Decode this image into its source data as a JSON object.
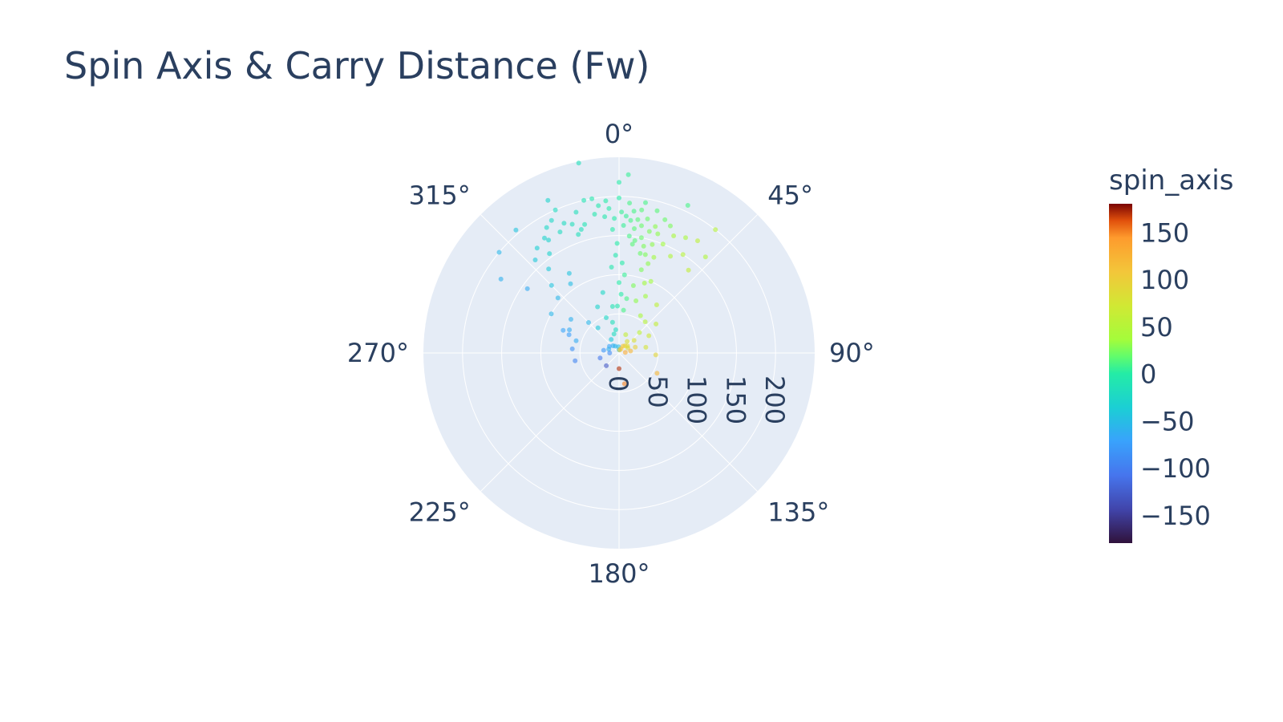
{
  "chart_data": {
    "type": "scatter",
    "subtype": "polar",
    "title": "Spin Axis & Carry Distance (Fw)",
    "angular_axis": {
      "direction": "clockwise",
      "rotation_zero": "top",
      "unit": "°",
      "ticks": [
        0,
        45,
        90,
        135,
        180,
        225,
        270,
        315
      ],
      "tick_labels": [
        "0°",
        "45°",
        "90°",
        "135°",
        "180°",
        "225°",
        "270°",
        "315°"
      ]
    },
    "radial_axis": {
      "range": [
        0,
        250
      ],
      "ticks": [
        0,
        50,
        100,
        150,
        200
      ],
      "tick_labels": [
        "0",
        "50",
        "100",
        "150",
        "200"
      ],
      "tick_angle": 90
    },
    "colorbar": {
      "title": "spin_axis",
      "range": [
        -180,
        180
      ],
      "ticks": [
        150,
        100,
        50,
        0,
        -50,
        -100,
        -150
      ],
      "tick_labels": [
        "150",
        "100",
        "50",
        "0",
        "−50",
        "−100",
        "−150"
      ],
      "colorscale": "Turbo"
    },
    "marker_opacity": 0.6,
    "points": [
      {
        "theta": 0,
        "r": 4,
        "spin_axis": -45
      },
      {
        "theta": 355,
        "r": 8,
        "spin_axis": -50
      },
      {
        "theta": 12,
        "r": 4,
        "spin_axis": 110
      },
      {
        "theta": 25,
        "r": 6,
        "spin_axis": 110
      },
      {
        "theta": 30,
        "r": 10,
        "spin_axis": 110
      },
      {
        "theta": 40,
        "r": 12,
        "spin_axis": 95
      },
      {
        "theta": 50,
        "r": 14,
        "spin_axis": 90
      },
      {
        "theta": 60,
        "r": 13,
        "spin_axis": 85
      },
      {
        "theta": 35,
        "r": 18,
        "spin_axis": 80
      },
      {
        "theta": 330,
        "r": 10,
        "spin_axis": -55
      },
      {
        "theta": 320,
        "r": 12,
        "spin_axis": -60
      },
      {
        "theta": 305,
        "r": 15,
        "spin_axis": -70
      },
      {
        "theta": 290,
        "r": 14,
        "spin_axis": -60
      },
      {
        "theta": 280,
        "r": 20,
        "spin_axis": -80
      },
      {
        "theta": 270,
        "r": 12,
        "spin_axis": -90
      },
      {
        "theta": 255,
        "r": 25,
        "spin_axis": -105
      },
      {
        "theta": 225,
        "r": 23,
        "spin_axis": -130
      },
      {
        "theta": 180,
        "r": 20,
        "spin_axis": 170
      },
      {
        "theta": 170,
        "r": 40,
        "spin_axis": 150
      },
      {
        "theta": 118,
        "r": 55,
        "spin_axis": 120
      },
      {
        "theta": 93,
        "r": 47,
        "spin_axis": 90
      },
      {
        "theta": 78,
        "r": 35,
        "spin_axis": 75
      },
      {
        "theta": 60,
        "r": 44,
        "spin_axis": 70
      },
      {
        "theta": 52,
        "r": 60,
        "spin_axis": 60
      },
      {
        "theta": 45,
        "r": 37,
        "spin_axis": 55
      },
      {
        "theta": 40,
        "r": 52,
        "spin_axis": 50
      },
      {
        "theta": 38,
        "r": 78,
        "spin_axis": 55
      },
      {
        "theta": 30,
        "r": 55,
        "spin_axis": 40
      },
      {
        "theta": 25,
        "r": 80,
        "spin_axis": 35
      },
      {
        "theta": 20,
        "r": 95,
        "spin_axis": 35
      },
      {
        "theta": 18,
        "r": 70,
        "spin_axis": 30
      },
      {
        "theta": 12,
        "r": 88,
        "spin_axis": 25
      },
      {
        "theta": 8,
        "r": 70,
        "spin_axis": 10
      },
      {
        "theta": 4,
        "r": 100,
        "spin_axis": 5
      },
      {
        "theta": 2,
        "r": 75,
        "spin_axis": 0
      },
      {
        "theta": 0,
        "r": 90,
        "spin_axis": 0
      },
      {
        "theta": 358,
        "r": 60,
        "spin_axis": -5
      },
      {
        "theta": 355,
        "r": 110,
        "spin_axis": -5
      },
      {
        "theta": 352,
        "r": 60,
        "spin_axis": -10
      },
      {
        "theta": 348,
        "r": 40,
        "spin_axis": -15
      },
      {
        "theta": 345,
        "r": 25,
        "spin_axis": -20
      },
      {
        "theta": 340,
        "r": 48,
        "spin_axis": -25
      },
      {
        "theta": 335,
        "r": 65,
        "spin_axis": -30
      },
      {
        "theta": 320,
        "r": 42,
        "spin_axis": -40
      },
      {
        "theta": 315,
        "r": 55,
        "spin_axis": -55
      },
      {
        "theta": 305,
        "r": 75,
        "spin_axis": -60
      },
      {
        "theta": 300,
        "r": 100,
        "spin_axis": -55
      },
      {
        "theta": 295,
        "r": 70,
        "spin_axis": -65
      },
      {
        "theta": 292,
        "r": 77,
        "spin_axis": -70
      },
      {
        "theta": 290,
        "r": 68,
        "spin_axis": -75
      },
      {
        "theta": 286,
        "r": 57,
        "spin_axis": -65
      },
      {
        "theta": 275,
        "r": 60,
        "spin_axis": -85
      },
      {
        "theta": 260,
        "r": 57,
        "spin_axis": -95
      },
      {
        "theta": 328,
        "r": 120,
        "spin_axis": -45
      },
      {
        "theta": 325,
        "r": 108,
        "spin_axis": -50
      },
      {
        "theta": 312,
        "r": 105,
        "spin_axis": -55
      },
      {
        "theta": 305,
        "r": 143,
        "spin_axis": -65
      },
      {
        "theta": 315,
        "r": 122,
        "spin_axis": -45
      },
      {
        "theta": 320,
        "r": 140,
        "spin_axis": -40
      },
      {
        "theta": 318,
        "r": 160,
        "spin_axis": -40
      },
      {
        "theta": 322,
        "r": 170,
        "spin_axis": -35
      },
      {
        "theta": 325,
        "r": 155,
        "spin_axis": -30
      },
      {
        "theta": 328,
        "r": 170,
        "spin_axis": -30
      },
      {
        "theta": 330,
        "r": 185,
        "spin_axis": -25
      },
      {
        "theta": 334,
        "r": 172,
        "spin_axis": -20
      },
      {
        "theta": 337,
        "r": 180,
        "spin_axis": -20
      },
      {
        "theta": 340,
        "r": 175,
        "spin_axis": -15
      },
      {
        "theta": 343,
        "r": 188,
        "spin_axis": -15
      },
      {
        "theta": 345,
        "r": 170,
        "spin_axis": -10
      },
      {
        "theta": 347,
        "r": 200,
        "spin_axis": -10
      },
      {
        "theta": 350,
        "r": 180,
        "spin_axis": -5
      },
      {
        "theta": 352,
        "r": 190,
        "spin_axis": -5
      },
      {
        "theta": 354,
        "r": 175,
        "spin_axis": -5
      },
      {
        "theta": 356,
        "r": 185,
        "spin_axis": 0
      },
      {
        "theta": 358,
        "r": 172,
        "spin_axis": 0
      },
      {
        "theta": 359,
        "r": 140,
        "spin_axis": 0
      },
      {
        "theta": 0,
        "r": 198,
        "spin_axis": 0
      },
      {
        "theta": 1,
        "r": 180,
        "spin_axis": 5
      },
      {
        "theta": 2,
        "r": 163,
        "spin_axis": 5
      },
      {
        "theta": 3,
        "r": 175,
        "spin_axis": 5
      },
      {
        "theta": 4,
        "r": 192,
        "spin_axis": 10
      },
      {
        "theta": 5,
        "r": 170,
        "spin_axis": 10
      },
      {
        "theta": 6,
        "r": 182,
        "spin_axis": 10
      },
      {
        "theta": 7,
        "r": 160,
        "spin_axis": 15
      },
      {
        "theta": 8,
        "r": 172,
        "spin_axis": 15
      },
      {
        "theta": 9,
        "r": 185,
        "spin_axis": 15
      },
      {
        "theta": 10,
        "r": 165,
        "spin_axis": 20
      },
      {
        "theta": 11,
        "r": 150,
        "spin_axis": 20
      },
      {
        "theta": 12,
        "r": 175,
        "spin_axis": 20
      },
      {
        "theta": 13,
        "r": 140,
        "spin_axis": 25
      },
      {
        "theta": 14,
        "r": 160,
        "spin_axis": 25
      },
      {
        "theta": 15,
        "r": 130,
        "spin_axis": 25
      },
      {
        "theta": 16,
        "r": 168,
        "spin_axis": 30
      },
      {
        "theta": 17,
        "r": 145,
        "spin_axis": 30
      },
      {
        "theta": 18,
        "r": 160,
        "spin_axis": 30
      },
      {
        "theta": 20,
        "r": 130,
        "spin_axis": 35
      },
      {
        "theta": 22,
        "r": 150,
        "spin_axis": 35
      },
      {
        "theta": 25,
        "r": 165,
        "spin_axis": 40
      },
      {
        "theta": 28,
        "r": 140,
        "spin_axis": 45
      },
      {
        "theta": 30,
        "r": 170,
        "spin_axis": 40
      },
      {
        "theta": 33,
        "r": 150,
        "spin_axis": 50
      },
      {
        "theta": 35,
        "r": 175,
        "spin_axis": 55
      },
      {
        "theta": 38,
        "r": 200,
        "spin_axis": 50
      },
      {
        "theta": 40,
        "r": 138,
        "spin_axis": 60
      },
      {
        "theta": 42,
        "r": 165,
        "spin_axis": 45
      },
      {
        "theta": 25,
        "r": 208,
        "spin_axis": 10
      },
      {
        "theta": 348,
        "r": 248,
        "spin_axis": -15
      },
      {
        "theta": 3,
        "r": 228,
        "spin_axis": 5
      },
      {
        "theta": 335,
        "r": 215,
        "spin_axis": -30
      },
      {
        "theta": 320,
        "r": 205,
        "spin_axis": -45
      },
      {
        "theta": 310,
        "r": 200,
        "spin_axis": -55
      },
      {
        "theta": 302,
        "r": 178,
        "spin_axis": -60
      },
      {
        "theta": 357,
        "r": 158,
        "spin_axis": 0
      },
      {
        "theta": 5,
        "r": 150,
        "spin_axis": 10
      },
      {
        "theta": 358,
        "r": 125,
        "spin_axis": -5
      },
      {
        "theta": 2,
        "r": 115,
        "spin_axis": 0
      },
      {
        "theta": 8,
        "r": 145,
        "spin_axis": 15
      },
      {
        "theta": 12,
        "r": 130,
        "spin_axis": 20
      },
      {
        "theta": 15,
        "r": 110,
        "spin_axis": 25
      },
      {
        "theta": 341,
        "r": 160,
        "spin_axis": -15
      },
      {
        "theta": 333,
        "r": 190,
        "spin_axis": -25
      },
      {
        "theta": 350,
        "r": 200,
        "spin_axis": -5
      },
      {
        "theta": 355,
        "r": 195,
        "spin_axis": 0
      },
      {
        "theta": 10,
        "r": 195,
        "spin_axis": 10
      },
      {
        "theta": 15,
        "r": 188,
        "spin_axis": 15
      },
      {
        "theta": 19,
        "r": 180,
        "spin_axis": 20
      },
      {
        "theta": 22,
        "r": 175,
        "spin_axis": 25
      },
      {
        "theta": 327,
        "r": 175,
        "spin_axis": -30
      },
      {
        "theta": 343,
        "r": 165,
        "spin_axis": -15
      },
      {
        "theta": 7,
        "r": 140,
        "spin_axis": 15
      },
      {
        "theta": 0,
        "r": 218,
        "spin_axis": 0
      },
      {
        "theta": 336,
        "r": 200,
        "spin_axis": -20
      },
      {
        "theta": 18,
        "r": 120,
        "spin_axis": 30
      },
      {
        "theta": 24,
        "r": 100,
        "spin_axis": 35
      },
      {
        "theta": 345,
        "r": 80,
        "spin_axis": -25
      },
      {
        "theta": 6,
        "r": 55,
        "spin_axis": 10
      },
      {
        "theta": 352,
        "r": 30,
        "spin_axis": -20
      },
      {
        "theta": 330,
        "r": 20,
        "spin_axis": -40
      },
      {
        "theta": 20,
        "r": 25,
        "spin_axis": 60
      },
      {
        "theta": 50,
        "r": 25,
        "spin_axis": 80
      },
      {
        "theta": 70,
        "r": 22,
        "spin_axis": 95
      },
      {
        "theta": 85,
        "r": 8,
        "spin_axis": 130
      },
      {
        "theta": 80,
        "r": 15,
        "spin_axis": 120
      }
    ]
  }
}
